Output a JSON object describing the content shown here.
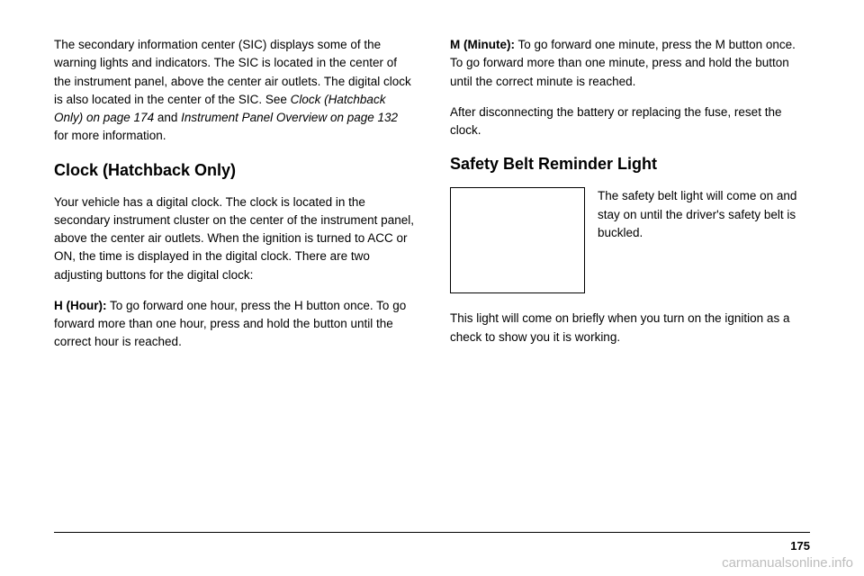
{
  "left": {
    "p1a": "The secondary information center (SIC) displays some of the warning lights and indicators. The SIC is located in the center of the instrument panel, above the center air outlets. The digital clock is also located in the center of the SIC. See ",
    "p1b": "Clock (Hatchback Only) on page 174",
    "p1c": " and ",
    "p1d": "Instrument Panel Overview on page 132",
    "p1e": " for more information.",
    "h1": "Clock (Hatchback Only)",
    "p2": "Your vehicle has a digital clock. The clock is located in the secondary instrument cluster on the center of the instrument panel, above the center air outlets. When the ignition is turned to ACC or ON, the time is displayed in the digital clock. There are two adjusting buttons for the digital clock:",
    "p3a": "H (Hour):",
    "p3b": " To go forward one hour, press the H button once. To go forward more than one hour, press and hold the button until the correct hour is reached."
  },
  "right": {
    "p1a": "M (Minute):",
    "p1b": " To go forward one minute, press the M button once. To go forward more than one minute, press and hold the button until the correct minute is reached.",
    "p2": "After disconnecting the battery or replacing the fuse, reset the clock.",
    "h1": "Safety Belt Reminder Light",
    "p3": "The safety belt light will come on and stay on until the driver's safety belt is buckled.",
    "p4": "This light will come on briefly when you turn on the ignition as a check to show you it is working."
  },
  "pageNum": "175",
  "watermark": "carmanualsonline.info"
}
